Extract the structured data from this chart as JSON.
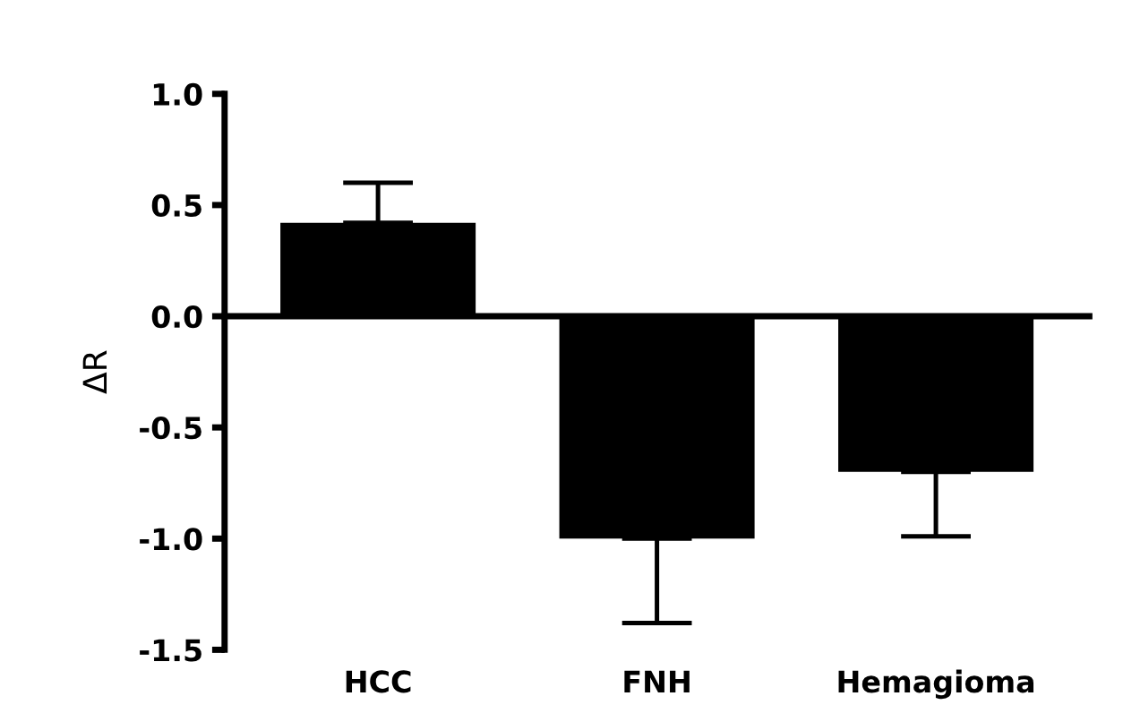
{
  "chart_data": {
    "type": "bar",
    "ylabel": "ΔR",
    "categories": [
      "HCC",
      "FNH",
      "Hemagioma"
    ],
    "values": [
      0.42,
      -1.0,
      -0.7
    ],
    "errors": [
      [
        0.42,
        0.6
      ],
      [
        -1.38,
        -1.0
      ],
      [
        -0.99,
        -0.7
      ]
    ],
    "color": "#000000",
    "ylim": [
      -1.5,
      1.0
    ],
    "yticks": [
      {
        "value": -1.5,
        "label": "-1.5"
      },
      {
        "value": -1.0,
        "label": "-1.0"
      },
      {
        "value": -0.5,
        "label": "-0.5"
      },
      {
        "value": 0.0,
        "label": "0.0"
      },
      {
        "value": 0.5,
        "label": "0.5"
      },
      {
        "value": 1.0,
        "label": "1.0"
      }
    ]
  }
}
